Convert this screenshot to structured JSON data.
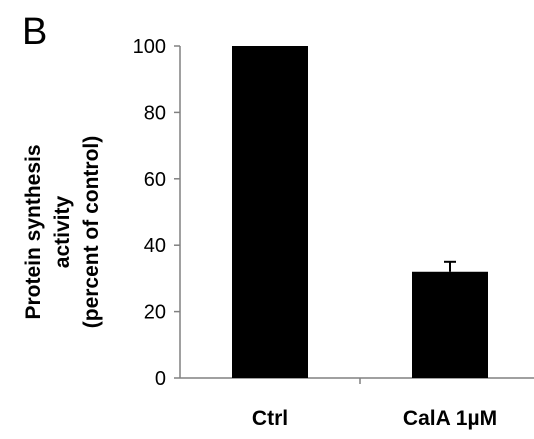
{
  "panel_label": "B",
  "chart_data": {
    "type": "bar",
    "categories": [
      "Ctrl",
      "CalA 1µM"
    ],
    "values": [
      100,
      32
    ],
    "error": [
      null,
      3
    ],
    "ylabel": [
      "Protein synthesis",
      "activity",
      "(percent of control)"
    ],
    "xlabel": "",
    "ylim": [
      0,
      100
    ],
    "yticks": [
      0,
      20,
      40,
      60,
      80,
      100
    ],
    "bar_color": "#000000",
    "grid": false,
    "legend": "none"
  }
}
